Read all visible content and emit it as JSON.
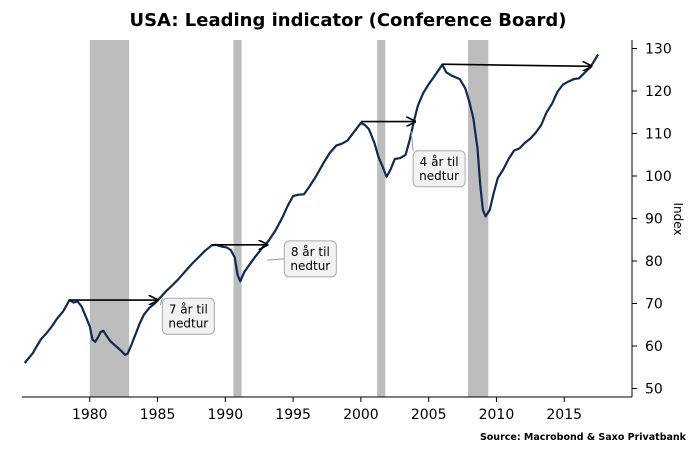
{
  "chart_data": {
    "type": "line",
    "title": "USA: Leading indicator (Conference Board)",
    "ylabel": "Index",
    "xlabel": "",
    "source": "Source: Macrobond & Saxo Privatbank",
    "xlim": [
      1975.0,
      2020.0
    ],
    "ylim": [
      48,
      132
    ],
    "x_ticks": [
      1980,
      1985,
      1990,
      1995,
      2000,
      2005,
      2010,
      2015
    ],
    "y_ticks": [
      50,
      60,
      70,
      80,
      90,
      100,
      110,
      120,
      130
    ],
    "y_axis_position": "right",
    "grid": false,
    "colors": {
      "line": "#0d2b52",
      "recession": "#bdbdbd",
      "arrow": "#000000",
      "callout_fill": "#f2f2f2",
      "callout_border": "#aaaaaa"
    },
    "recessions": [
      {
        "start": 1980.0,
        "end": 1982.9
      },
      {
        "start": 1990.6,
        "end": 1991.2
      },
      {
        "start": 2001.2,
        "end": 2001.8
      },
      {
        "start": 2007.9,
        "end": 2009.4
      }
    ],
    "series": [
      {
        "values": [
          [
            1975.2,
            56.0
          ],
          [
            1975.5,
            57.2
          ],
          [
            1975.8,
            58.3
          ],
          [
            1976.1,
            60.0
          ],
          [
            1976.4,
            61.6
          ],
          [
            1976.8,
            63.0
          ],
          [
            1977.2,
            64.6
          ],
          [
            1977.6,
            66.5
          ],
          [
            1978.0,
            68.0
          ],
          [
            1978.3,
            69.6
          ],
          [
            1978.5,
            70.8
          ],
          [
            1978.8,
            70.2
          ],
          [
            1979.1,
            70.5
          ],
          [
            1979.4,
            69.3
          ],
          [
            1979.7,
            67.0
          ],
          [
            1980.0,
            64.6
          ],
          [
            1980.2,
            61.5
          ],
          [
            1980.4,
            61.0
          ],
          [
            1980.6,
            62.0
          ],
          [
            1980.8,
            63.3
          ],
          [
            1981.0,
            63.6
          ],
          [
            1981.2,
            62.6
          ],
          [
            1981.5,
            61.2
          ],
          [
            1981.8,
            60.3
          ],
          [
            1982.1,
            59.5
          ],
          [
            1982.4,
            58.6
          ],
          [
            1982.6,
            57.9
          ],
          [
            1982.8,
            58.2
          ],
          [
            1983.1,
            60.5
          ],
          [
            1983.4,
            63.0
          ],
          [
            1983.7,
            65.4
          ],
          [
            1984.0,
            67.4
          ],
          [
            1984.4,
            69.0
          ],
          [
            1984.8,
            70.0
          ],
          [
            1985.2,
            71.4
          ],
          [
            1985.6,
            72.8
          ],
          [
            1986.0,
            74.0
          ],
          [
            1986.5,
            75.6
          ],
          [
            1987.0,
            77.4
          ],
          [
            1987.5,
            79.2
          ],
          [
            1988.0,
            80.8
          ],
          [
            1988.5,
            82.4
          ],
          [
            1989.0,
            83.7
          ],
          [
            1989.3,
            83.8
          ],
          [
            1989.7,
            83.4
          ],
          [
            1990.1,
            83.2
          ],
          [
            1990.4,
            82.6
          ],
          [
            1990.7,
            80.8
          ],
          [
            1990.9,
            76.8
          ],
          [
            1991.1,
            75.2
          ],
          [
            1991.4,
            77.4
          ],
          [
            1991.8,
            79.2
          ],
          [
            1992.2,
            81.0
          ],
          [
            1992.7,
            83.0
          ],
          [
            1993.2,
            84.8
          ],
          [
            1993.7,
            87.2
          ],
          [
            1994.2,
            90.2
          ],
          [
            1994.6,
            93.0
          ],
          [
            1995.0,
            95.3
          ],
          [
            1995.4,
            95.6
          ],
          [
            1995.8,
            95.7
          ],
          [
            1996.2,
            97.5
          ],
          [
            1996.7,
            100.0
          ],
          [
            1997.2,
            102.8
          ],
          [
            1997.7,
            105.4
          ],
          [
            1998.2,
            107.2
          ],
          [
            1998.6,
            107.6
          ],
          [
            1999.0,
            108.3
          ],
          [
            1999.5,
            110.4
          ],
          [
            2000.0,
            112.5
          ],
          [
            2000.3,
            112.0
          ],
          [
            2000.6,
            111.0
          ],
          [
            2001.0,
            107.8
          ],
          [
            2001.3,
            104.5
          ],
          [
            2001.6,
            102.2
          ],
          [
            2001.9,
            99.8
          ],
          [
            2002.2,
            101.6
          ],
          [
            2002.5,
            104.0
          ],
          [
            2002.9,
            104.2
          ],
          [
            2003.3,
            105.0
          ],
          [
            2003.6,
            108.5
          ],
          [
            2003.9,
            112.8
          ],
          [
            2004.2,
            116.5
          ],
          [
            2004.6,
            119.5
          ],
          [
            2005.0,
            121.6
          ],
          [
            2005.4,
            123.4
          ],
          [
            2005.8,
            125.2
          ],
          [
            2006.0,
            126.2
          ],
          [
            2006.3,
            124.4
          ],
          [
            2006.7,
            123.6
          ],
          [
            2007.0,
            123.2
          ],
          [
            2007.3,
            122.8
          ],
          [
            2007.7,
            120.6
          ],
          [
            2008.0,
            117.5
          ],
          [
            2008.3,
            113.5
          ],
          [
            2008.6,
            106.5
          ],
          [
            2008.8,
            98.0
          ],
          [
            2009.0,
            92.0
          ],
          [
            2009.2,
            90.5
          ],
          [
            2009.5,
            92.0
          ],
          [
            2009.8,
            96.0
          ],
          [
            2010.1,
            99.5
          ],
          [
            2010.5,
            101.5
          ],
          [
            2010.9,
            104.0
          ],
          [
            2011.3,
            106.0
          ],
          [
            2011.7,
            106.5
          ],
          [
            2012.1,
            107.8
          ],
          [
            2012.5,
            108.8
          ],
          [
            2012.9,
            110.2
          ],
          [
            2013.3,
            112.0
          ],
          [
            2013.7,
            115.0
          ],
          [
            2014.1,
            117.0
          ],
          [
            2014.5,
            119.8
          ],
          [
            2014.9,
            121.5
          ],
          [
            2015.3,
            122.2
          ],
          [
            2015.7,
            122.8
          ],
          [
            2016.1,
            123.0
          ],
          [
            2016.5,
            124.3
          ],
          [
            2016.9,
            125.5
          ],
          [
            2017.2,
            127.0
          ],
          [
            2017.5,
            128.6
          ]
        ]
      }
    ],
    "annotations": [
      {
        "arrow_from": [
          1978.5,
          70.8
        ],
        "arrow_to": [
          1985.0,
          70.8
        ],
        "label_lines": [
          "7 år til",
          "nedtur"
        ],
        "label_at": [
          1985.5,
          67.0
        ],
        "leader_to": [
          1985.2,
          69.6
        ]
      },
      {
        "arrow_from": [
          1989.0,
          83.8
        ],
        "arrow_to": [
          1993.1,
          83.8
        ],
        "label_lines": [
          "8 år til",
          "nedtur"
        ],
        "label_at": [
          1994.5,
          80.5
        ],
        "leader_to": [
          1993.1,
          80.2
        ]
      },
      {
        "arrow_from": [
          2000.0,
          112.8
        ],
        "arrow_to": [
          2004.0,
          112.8
        ],
        "label_lines": [
          "4 år til",
          "nedtur"
        ],
        "label_at": [
          2004.0,
          101.7
        ],
        "leader_to": [
          2003.7,
          110.6
        ]
      },
      {
        "arrow_from": [
          2006.0,
          126.3
        ],
        "arrow_to": [
          2017.0,
          125.8
        ],
        "label_lines": [],
        "label_at": null,
        "leader_to": null
      }
    ]
  }
}
